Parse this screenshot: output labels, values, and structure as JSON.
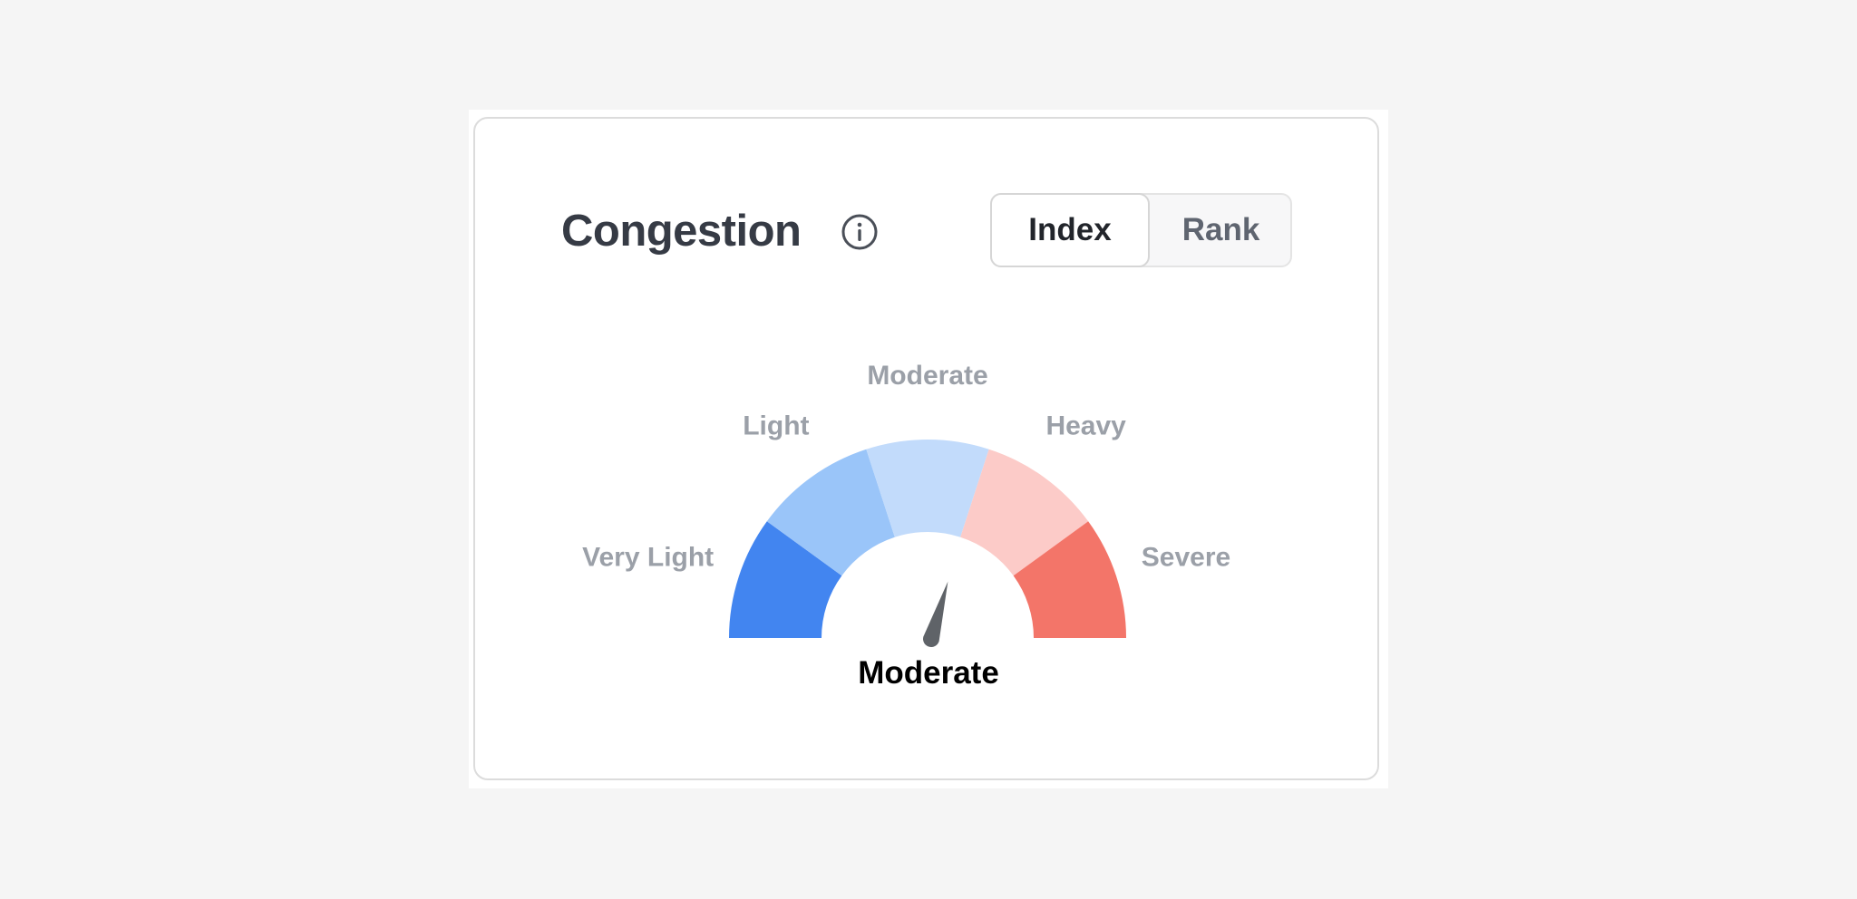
{
  "card": {
    "title": "Congestion",
    "info_icon": "info-circle-icon",
    "toggle": {
      "options": [
        "Index",
        "Rank"
      ],
      "selected": "Index"
    }
  },
  "gauge": {
    "segments": [
      {
        "label": "Very Light",
        "color": "#4285f0"
      },
      {
        "label": "Light",
        "color": "#9ac5f9"
      },
      {
        "label": "Moderate",
        "color": "#c2dbfb"
      },
      {
        "label": "Heavy",
        "color": "#fccbc8"
      },
      {
        "label": "Severe",
        "color": "#f37569"
      }
    ],
    "needle_position": 0.59,
    "needle_color": "#5f6368",
    "current_label": "Moderate"
  }
}
